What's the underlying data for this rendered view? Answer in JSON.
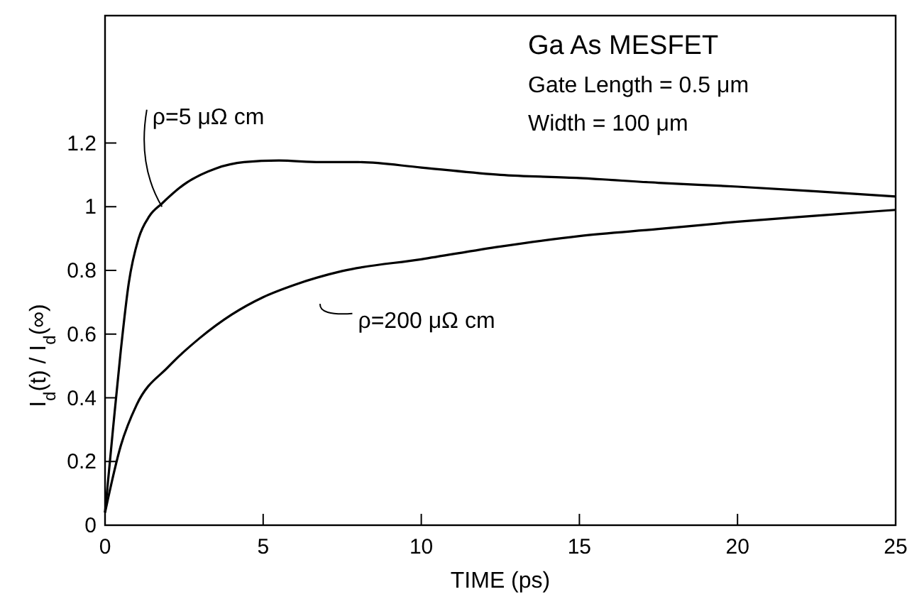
{
  "chart_data": {
    "type": "line",
    "xlabel": "TIME (ps)",
    "ylabel": "I$_{d}$(t) / I$_{d}$(∞)",
    "xlim": [
      0,
      25
    ],
    "ylim": [
      0,
      1.6
    ],
    "xticks": [
      0,
      5,
      10,
      15,
      20,
      25
    ],
    "yticks": [
      0,
      0.2,
      0.4,
      0.6,
      0.8,
      1.0,
      1.2
    ],
    "grid": false,
    "marker": "none",
    "line_style": "solid",
    "annotations": [
      "Ga As MESFET",
      "Gate Length = 0.5 μm",
      "Width = 100 μm"
    ],
    "series": [
      {
        "name": "ρ=5 μΩ cm",
        "color": "#000000",
        "x": [
          0,
          0.25,
          0.5,
          0.75,
          1.06,
          1.4,
          1.8,
          2.5,
          3.5,
          4.4,
          5.5,
          6.8,
          8,
          10,
          12.5,
          15,
          17.5,
          20,
          22.5,
          25
        ],
        "values": [
          0.04,
          0.3,
          0.55,
          0.76,
          0.9,
          0.97,
          1.01,
          1.07,
          1.12,
          1.14,
          1.145,
          1.14,
          1.14,
          1.123,
          1.1,
          1.09,
          1.075,
          1.063,
          1.048,
          1.032
        ]
      },
      {
        "name": "ρ=200 μΩ cm",
        "color": "#000000",
        "x": [
          0,
          0.5,
          1,
          2,
          3,
          4,
          5,
          6,
          7.5,
          10,
          12.5,
          15,
          17.5,
          20,
          22.5,
          25
        ],
        "values": [
          0.04,
          0.25,
          0.378,
          0.497,
          0.588,
          0.661,
          0.716,
          0.755,
          0.798,
          0.835,
          0.875,
          0.908,
          0.93,
          0.953,
          0.972,
          0.99
        ]
      }
    ]
  }
}
